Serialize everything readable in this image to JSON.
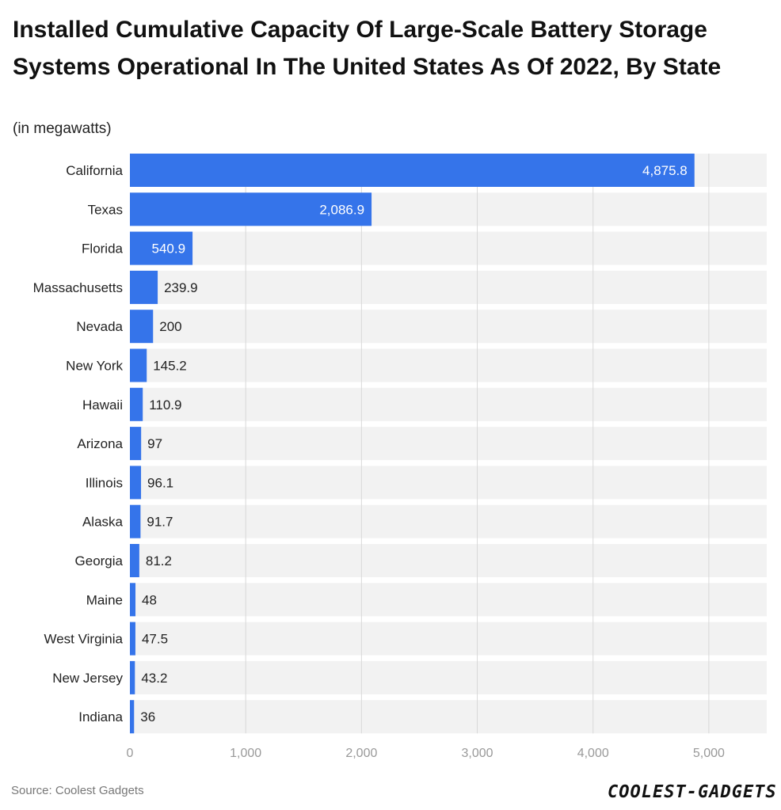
{
  "title": "Installed Cumulative Capacity Of Large-Scale Battery Storage Systems Operational In The United States As Of 2022, By State",
  "subtitle": "(in megawatts)",
  "source": "Source: Coolest Gadgets",
  "logo_text": "COOLEST-GADGETS",
  "colors": {
    "bar": "#3574EA",
    "track": "#F2F2F2",
    "grid": "#D8D8D8",
    "inside_label": "#FFFFFF",
    "outside_label": "#222222"
  },
  "chart_data": {
    "type": "bar",
    "orientation": "horizontal",
    "categories": [
      "California",
      "Texas",
      "Florida",
      "Massachusetts",
      "Nevada",
      "New York",
      "Hawaii",
      "Arizona",
      "Illinois",
      "Alaska",
      "Georgia",
      "Maine",
      "West Virginia",
      "New Jersey",
      "Indiana"
    ],
    "values": [
      4875.8,
      2086.9,
      540.9,
      239.9,
      200,
      145.2,
      110.9,
      97,
      96.1,
      91.7,
      81.2,
      48,
      47.5,
      43.2,
      36
    ],
    "value_labels": [
      "4,875.8",
      "2,086.9",
      "540.9",
      "239.9",
      "200",
      "145.2",
      "110.9",
      "97",
      "96.1",
      "91.7",
      "81.2",
      "48",
      "47.5",
      "43.2",
      "36"
    ],
    "x_ticks": [
      0,
      1000,
      2000,
      3000,
      4000,
      5000
    ],
    "x_tick_labels": [
      "0",
      "1,000",
      "2,000",
      "3,000",
      "4,000",
      "5,000"
    ],
    "xlim": [
      0,
      5500
    ],
    "grid": true,
    "legend": "none"
  }
}
